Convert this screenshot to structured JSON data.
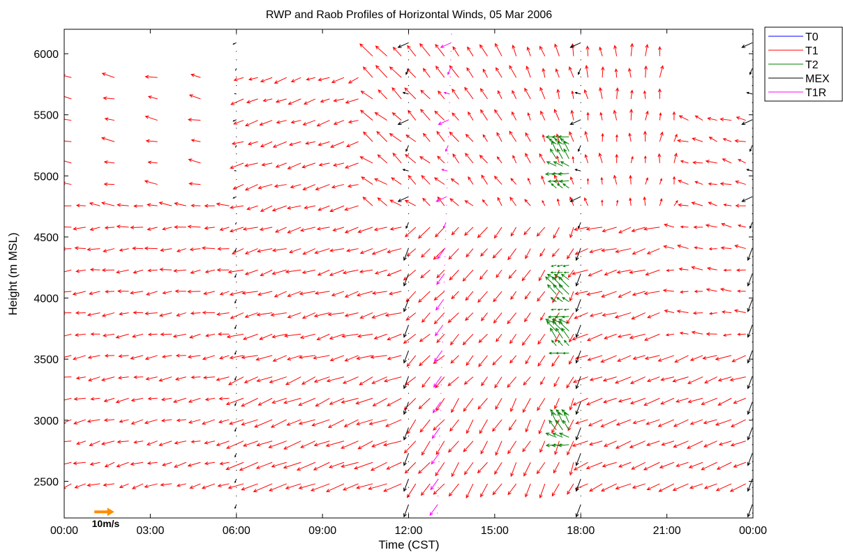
{
  "chart_data": {
    "type": "quiver",
    "title": "RWP and Raob Profiles of Horizontal Winds, 05 Mar 2006",
    "xlabel": "Time (CST)",
    "ylabel": "Height (m MSL)",
    "xlim_hours": [
      0,
      24
    ],
    "ylim": [
      2200,
      6200
    ],
    "x_ticks": [
      {
        "hour": 0,
        "label": "00:00"
      },
      {
        "hour": 3,
        "label": "03:00"
      },
      {
        "hour": 6,
        "label": "06:00"
      },
      {
        "hour": 9,
        "label": "09:00"
      },
      {
        "hour": 12,
        "label": "12:00"
      },
      {
        "hour": 15,
        "label": "15:00"
      },
      {
        "hour": 18,
        "label": "18:00"
      },
      {
        "hour": 21,
        "label": "21:00"
      },
      {
        "hour": 24,
        "label": "00:00"
      }
    ],
    "y_ticks": [
      2500,
      3000,
      3500,
      4000,
      4500,
      5000,
      5500,
      6000
    ],
    "grid": false,
    "legend_position": "outside-top-right",
    "legend": [
      {
        "name": "T0",
        "color": "#0000ff"
      },
      {
        "name": "T1",
        "color": "#ff0000"
      },
      {
        "name": "T2",
        "color": "#008000"
      },
      {
        "name": "MEX",
        "color": "#000000"
      },
      {
        "name": "T1R",
        "color": "#ff00ff"
      }
    ],
    "reference_vector": {
      "label": "10m/s",
      "speed_ms": 10,
      "color": "#ff8c00"
    },
    "series": [
      {
        "name": "T1",
        "color": "#ff0000",
        "kind": "profiler",
        "description_regions": [
          {
            "hours": [
              0,
              6
            ],
            "heights": [
              2400,
              5800
            ],
            "u": -7,
            "v": -1
          },
          {
            "hours": [
              6,
              12
            ],
            "heights": [
              2400,
              4800
            ],
            "u": -9,
            "v": -3
          },
          {
            "hours": [
              12,
              18
            ],
            "heights": [
              2400,
              4700
            ],
            "u": -6,
            "v": -6
          },
          {
            "hours": [
              18,
              24
            ],
            "heights": [
              2400,
              3500
            ],
            "u": -9,
            "v": -3
          },
          {
            "hours": [
              12,
              21
            ],
            "heights": [
              4700,
              6200
            ],
            "u": -3,
            "v": 6
          },
          {
            "hours": [
              21,
              24
            ],
            "heights": [
              3600,
              5500
            ],
            "u": -6,
            "v": 1
          }
        ]
      },
      {
        "name": "T2",
        "color": "#008000",
        "kind": "profiler",
        "times_hours": [
          17.2,
          17.5
        ],
        "heights": [
          2800,
          3600,
          4000,
          4200,
          5000,
          5300
        ],
        "u": -5,
        "v": 3
      },
      {
        "name": "MEX",
        "color": "#000000",
        "kind": "raob",
        "launch_hours": [
          6,
          12,
          18,
          24
        ],
        "heights_range": [
          2200,
          6200
        ],
        "u": -3,
        "v": -8
      },
      {
        "name": "T1R",
        "color": "#ff00ff",
        "kind": "raob",
        "launch_hours": [
          13
        ],
        "heights_range": [
          2200,
          6200
        ],
        "u": -5,
        "v": -7
      }
    ]
  }
}
